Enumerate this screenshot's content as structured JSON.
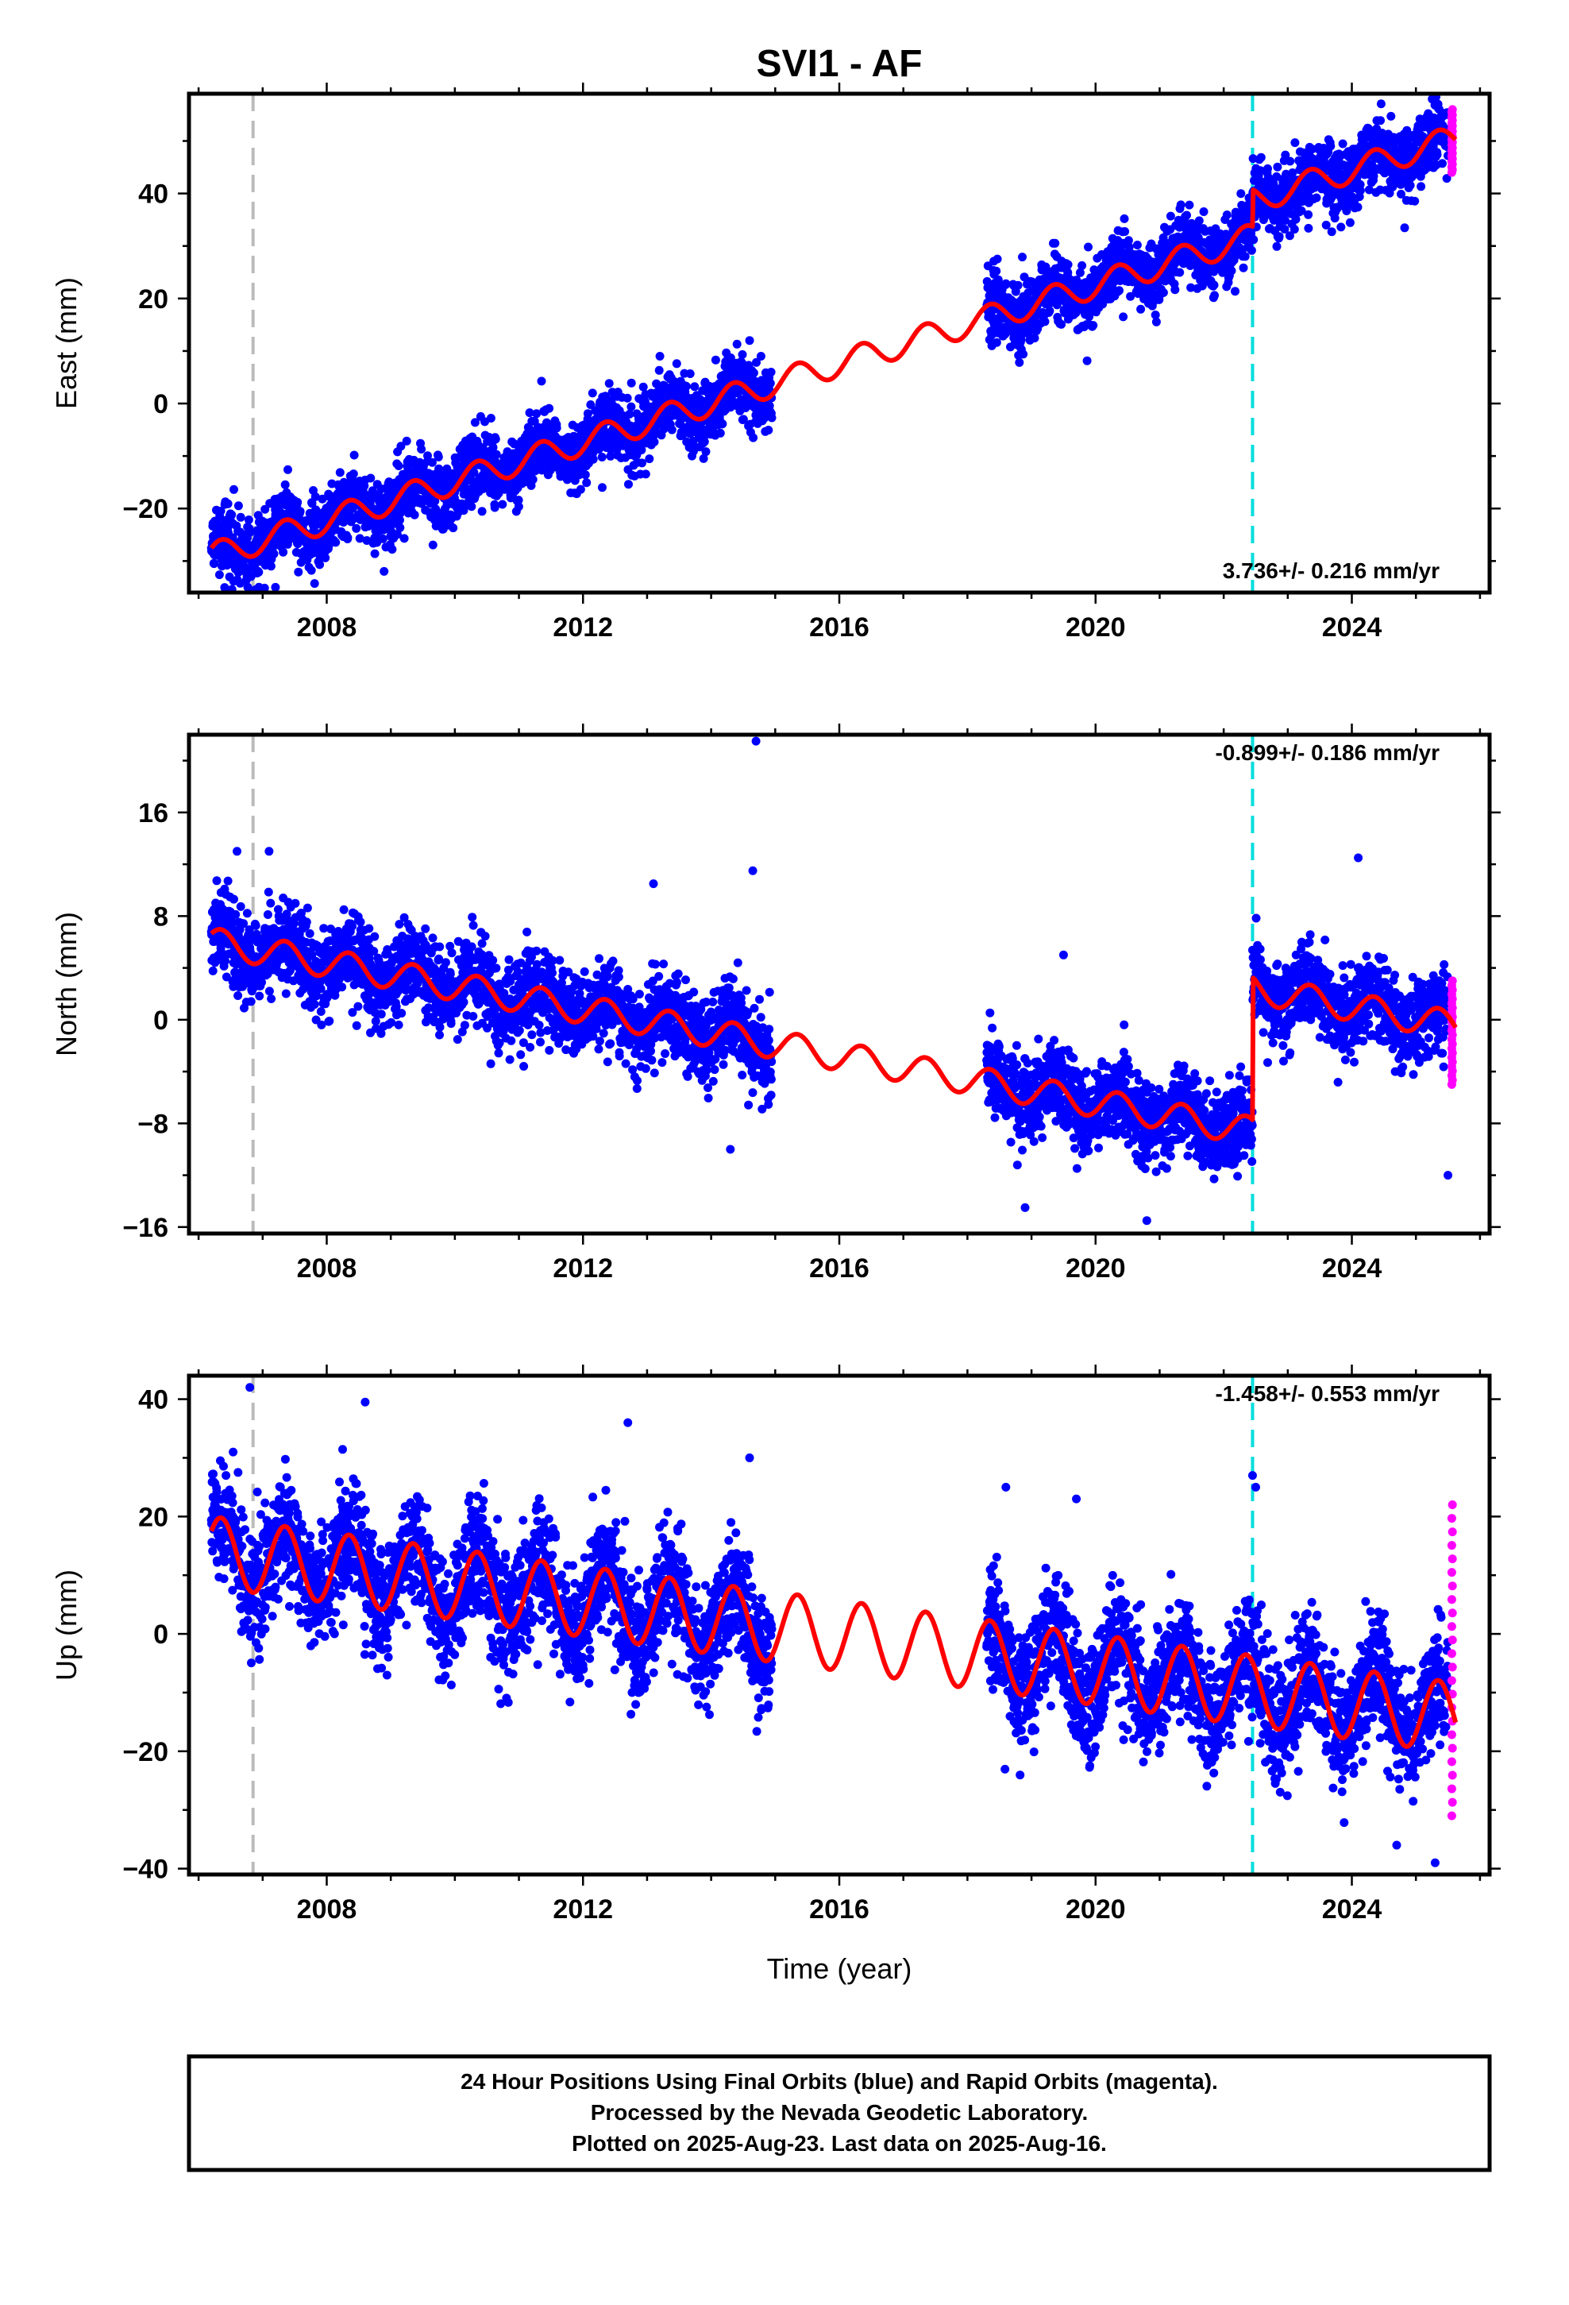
{
  "title": "SVI1 - AF",
  "xlabel": "Time (year)",
  "xticks": [
    "2008",
    "2012",
    "2016",
    "2020",
    "2024"
  ],
  "colors": {
    "final": "#0000ff",
    "rapid": "#ff00ff",
    "model": "#ff0000",
    "equipment_change": "#bbbbbb",
    "offset_line": "#00dddd"
  },
  "footer": {
    "line1": "24 Hour Positions Using Final Orbits (blue) and Rapid Orbits (magenta).",
    "line2": "Processed by the Nevada Geodetic Laboratory.",
    "line3": "Plotted on 2025-Aug-23. Last data on 2025-Aug-16."
  },
  "chart_data": [
    {
      "type": "scatter",
      "ylabel": "East (mm)",
      "rate_label": "3.736+/- 0.216 mm/yr",
      "rate_position": "bottom-right",
      "xlim": [
        2005.85,
        2026.15
      ],
      "ylim": [
        -36,
        59
      ],
      "yticks": [
        "−20",
        "0",
        "20",
        "40"
      ],
      "ytick_values": [
        -20,
        0,
        20,
        40
      ],
      "vertical_lines": [
        {
          "x": 2006.85,
          "style": "gray-dashed"
        },
        {
          "x": 2022.45,
          "style": "cyan-dashed"
        }
      ],
      "model": {
        "slope_mm_per_yr": 3.736,
        "value_at_2006_2": -29,
        "annual_amplitude_mm": 2.5,
        "step": {
          "x": 2022.45,
          "size_mm": 7
        }
      },
      "series": [
        {
          "name": "Final Orbits",
          "color": "#0000ff",
          "data_x_ranges": [
            [
              2006.2,
              2014.95
            ],
            [
              2018.3,
              2025.5
            ]
          ],
          "scatter_mm": 3.2,
          "outliers": [
            [
              2013.2,
              9
            ],
            [
              2014.6,
              12
            ],
            [
              2007.2,
              -35
            ],
            [
              2012.3,
              -16
            ]
          ]
        },
        {
          "name": "Rapid Orbits",
          "color": "#ff00ff",
          "data_x_ranges": [
            [
              2025.5,
              2025.62
            ]
          ],
          "y_range": [
            44,
            56
          ]
        }
      ]
    },
    {
      "type": "scatter",
      "ylabel": "North (mm)",
      "rate_label": "-0.899+/- 0.186 mm/yr",
      "rate_position": "top-right",
      "xlim": [
        2005.85,
        2026.15
      ],
      "ylim": [
        -16.5,
        22
      ],
      "yticks": [
        "−16",
        "−8",
        "0",
        "8",
        "16"
      ],
      "ytick_values": [
        -16,
        -8,
        0,
        8,
        16
      ],
      "vertical_lines": [
        {
          "x": 2006.85,
          "style": "gray-dashed"
        },
        {
          "x": 2022.45,
          "style": "cyan-dashed"
        }
      ],
      "model": {
        "slope_mm_per_yr": -0.899,
        "value_at_2006_2": 6,
        "annual_amplitude_mm": 1.1,
        "step": {
          "x": 2022.45,
          "size_mm": 11
        }
      },
      "series": [
        {
          "name": "Final Orbits",
          "color": "#0000ff",
          "data_x_ranges": [
            [
              2006.2,
              2014.95
            ],
            [
              2018.3,
              2025.5
            ]
          ],
          "scatter_mm": 1.6,
          "outliers": [
            [
              2014.7,
              21.5
            ],
            [
              2014.65,
              11.5
            ],
            [
              2013.1,
              10.5
            ],
            [
              2006.6,
              13
            ],
            [
              2007.1,
              13
            ],
            [
              2024.1,
              12.5
            ],
            [
              2019.5,
              5
            ],
            [
              2020.8,
              -15.5
            ],
            [
              2018.9,
              -14.5
            ],
            [
              2014.3,
              -10
            ],
            [
              2025.5,
              -12
            ]
          ]
        },
        {
          "name": "Rapid Orbits",
          "color": "#ff00ff",
          "data_x_ranges": [
            [
              2025.5,
              2025.62
            ]
          ],
          "y_range": [
            -5,
            3
          ]
        }
      ]
    },
    {
      "type": "scatter",
      "ylabel": "Up (mm)",
      "rate_label": "-1.458+/- 0.553 mm/yr",
      "rate_position": "top-right",
      "xlim": [
        2005.85,
        2026.15
      ],
      "ylim": [
        -41,
        44
      ],
      "yticks": [
        "−40",
        "−20",
        "0",
        "20",
        "40"
      ],
      "ytick_values": [
        -40,
        -20,
        0,
        20,
        40
      ],
      "vertical_lines": [
        {
          "x": 2006.85,
          "style": "gray-dashed"
        },
        {
          "x": 2022.45,
          "style": "cyan-dashed"
        }
      ],
      "model": {
        "slope_mm_per_yr": -1.458,
        "value_at_2006_2": 14,
        "annual_amplitude_mm": 6,
        "step": {
          "x": 2022.45,
          "size_mm": 0
        }
      },
      "series": [
        {
          "name": "Final Orbits",
          "color": "#0000ff",
          "data_x_ranges": [
            [
              2006.2,
              2014.95
            ],
            [
              2018.3,
              2025.5
            ]
          ],
          "scatter_mm": 5,
          "outliers": [
            [
              2006.8,
              42
            ],
            [
              2008.6,
              39.5
            ],
            [
              2012.7,
              36
            ],
            [
              2014.6,
              30
            ],
            [
              2022.45,
              27
            ],
            [
              2022.5,
              25
            ],
            [
              2018.6,
              25
            ],
            [
              2019.7,
              23
            ],
            [
              2025.3,
              -39
            ],
            [
              2024.7,
              -36
            ]
          ]
        },
        {
          "name": "Rapid Orbits",
          "color": "#ff00ff",
          "data_x_ranges": [
            [
              2025.5,
              2025.62
            ]
          ],
          "y_range": [
            -31,
            22
          ]
        }
      ]
    }
  ]
}
